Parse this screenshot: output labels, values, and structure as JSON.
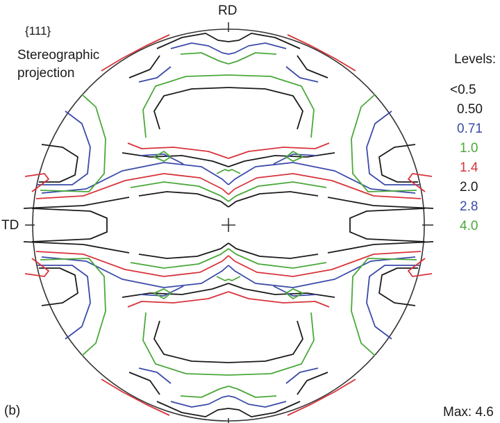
{
  "labels": {
    "rd": "RD",
    "td": "TD",
    "plane": "{111}",
    "projection_line1": "Stereographic",
    "projection_line2": "projection",
    "panel": "(b)",
    "max": "Max: 4.6"
  },
  "legend": {
    "title": "Levels:",
    "items": [
      {
        "label": "<0.5",
        "color": "#1a1a1a"
      },
      {
        "label": "0.50",
        "color": "#1a1a1a"
      },
      {
        "label": "0.71",
        "color": "#3a4aa8"
      },
      {
        "label": "1.0",
        "color": "#4aa83a"
      },
      {
        "label": "1.4",
        "color": "#d8333a"
      },
      {
        "label": "2.0",
        "color": "#1a1a1a"
      },
      {
        "label": "2.8",
        "color": "#3a4aa8"
      },
      {
        "label": "4.0",
        "color": "#4aa83a"
      }
    ]
  },
  "colors": {
    "black": "#1a1a1a",
    "blue": "#3a4aa8",
    "green": "#4aa83a",
    "red": "#d8333a"
  }
}
